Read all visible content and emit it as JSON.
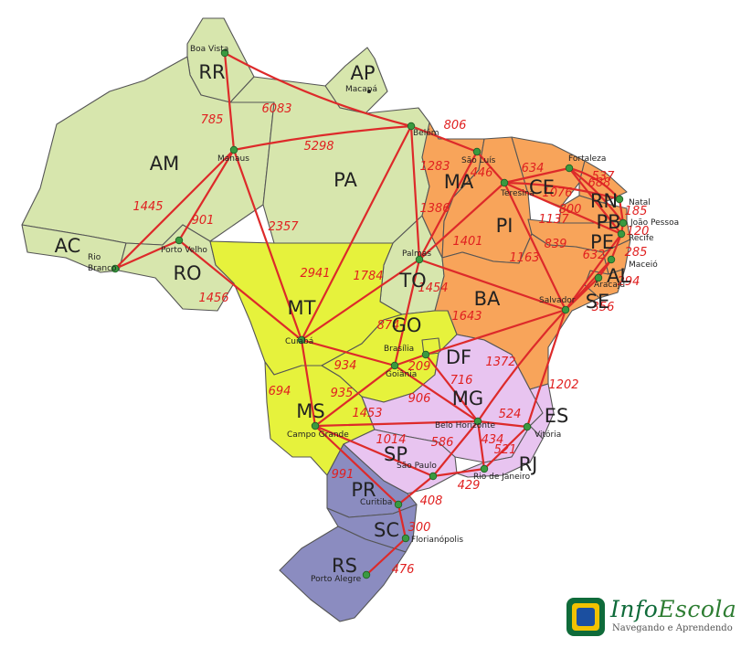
{
  "map": {
    "colors": {
      "north": "#d7e6ad",
      "northeast": "#f8a45a",
      "center_west": "#e6f23c",
      "southeast": "#e8c4f0",
      "south": "#8b8cc0",
      "route": "#dd2a2a",
      "city_marker": "#3a9a40",
      "border": "#555555"
    },
    "states": [
      {
        "id": "RR",
        "label": "RR",
        "region": "north"
      },
      {
        "id": "AP",
        "label": "AP",
        "region": "north"
      },
      {
        "id": "AM",
        "label": "AM",
        "region": "north"
      },
      {
        "id": "PA",
        "label": "PA",
        "region": "north"
      },
      {
        "id": "AC",
        "label": "AC",
        "region": "north"
      },
      {
        "id": "RO",
        "label": "RO",
        "region": "north"
      },
      {
        "id": "TO",
        "label": "TO",
        "region": "north"
      },
      {
        "id": "MA",
        "label": "MA",
        "region": "northeast"
      },
      {
        "id": "PI",
        "label": "PI",
        "region": "northeast"
      },
      {
        "id": "CE",
        "label": "CE",
        "region": "northeast"
      },
      {
        "id": "RN",
        "label": "RN",
        "region": "northeast"
      },
      {
        "id": "PB",
        "label": "PB",
        "region": "northeast"
      },
      {
        "id": "PE",
        "label": "PE",
        "region": "northeast"
      },
      {
        "id": "AL",
        "label": "AL",
        "region": "northeast"
      },
      {
        "id": "SE",
        "label": "SE",
        "region": "northeast"
      },
      {
        "id": "BA",
        "label": "BA",
        "region": "northeast"
      },
      {
        "id": "MT",
        "label": "MT",
        "region": "center_west"
      },
      {
        "id": "GO",
        "label": "GO",
        "region": "center_west"
      },
      {
        "id": "DF",
        "label": "DF",
        "region": "center_west"
      },
      {
        "id": "MS",
        "label": "MS",
        "region": "center_west"
      },
      {
        "id": "MG",
        "label": "MG",
        "region": "southeast"
      },
      {
        "id": "ES",
        "label": "ES",
        "region": "southeast"
      },
      {
        "id": "SP",
        "label": "SP",
        "region": "southeast"
      },
      {
        "id": "RJ",
        "label": "RJ",
        "region": "southeast"
      },
      {
        "id": "PR",
        "label": "PR",
        "region": "south"
      },
      {
        "id": "SC",
        "label": "SC",
        "region": "south"
      },
      {
        "id": "RS",
        "label": "RS",
        "region": "south"
      }
    ],
    "cities": [
      {
        "id": "boavista",
        "name": "Boa Vista"
      },
      {
        "id": "macapa",
        "name": "Macapá"
      },
      {
        "id": "manaus",
        "name": "Manaus"
      },
      {
        "id": "belem",
        "name": "Belém"
      },
      {
        "id": "saoluis",
        "name": "São Luís"
      },
      {
        "id": "fortaleza",
        "name": "Fortaleza"
      },
      {
        "id": "teresina",
        "name": "Teresina"
      },
      {
        "id": "natal",
        "name": "Natal"
      },
      {
        "id": "joaopessoa",
        "name": "João Pessoa"
      },
      {
        "id": "recife",
        "name": "Recife"
      },
      {
        "id": "maceio",
        "name": "Maceió"
      },
      {
        "id": "aracaju",
        "name": "Aracajú"
      },
      {
        "id": "salvador",
        "name": "Salvador"
      },
      {
        "id": "riobranco",
        "name": "Rio Branco"
      },
      {
        "id": "portovelho",
        "name": "Porto Velho"
      },
      {
        "id": "palmas",
        "name": "Palmas"
      },
      {
        "id": "cuiaba",
        "name": "Cuiabá"
      },
      {
        "id": "brasilia",
        "name": "Brasília"
      },
      {
        "id": "goiania",
        "name": "Goiânia"
      },
      {
        "id": "campogrande",
        "name": "Campo Grande"
      },
      {
        "id": "belohorizonte",
        "name": "Belo Horizonte"
      },
      {
        "id": "vitoria",
        "name": "Vitória"
      },
      {
        "id": "saopaulo",
        "name": "São Paulo"
      },
      {
        "id": "riodejaneiro",
        "name": "Rio de Janeiro"
      },
      {
        "id": "curitiba",
        "name": "Curitiba"
      },
      {
        "id": "florianopolis",
        "name": "Florianópolis"
      },
      {
        "id": "portoalegre",
        "name": "Porto Alegre"
      }
    ],
    "routes": [
      {
        "from": "boavista",
        "to": "manaus",
        "km": "785"
      },
      {
        "from": "boavista",
        "to": "belem",
        "km": "6083"
      },
      {
        "from": "manaus",
        "to": "belem",
        "km": "5298"
      },
      {
        "from": "manaus",
        "to": "riobranco",
        "km": "1445"
      },
      {
        "from": "manaus",
        "to": "portovelho",
        "km": "901"
      },
      {
        "from": "manaus",
        "to": "cuiaba",
        "km": "2357"
      },
      {
        "from": "portovelho",
        "to": "riobranco",
        "km": ""
      },
      {
        "from": "portovelho",
        "to": "cuiaba",
        "km": "1456"
      },
      {
        "from": "belem",
        "to": "saoluis",
        "km": "806"
      },
      {
        "from": "belem",
        "to": "palmas",
        "km": "1283"
      },
      {
        "from": "belem",
        "to": "cuiaba",
        "km": "2941"
      },
      {
        "from": "saoluis",
        "to": "teresina",
        "km": "446"
      },
      {
        "from": "saoluis",
        "to": "palmas",
        "km": "1386"
      },
      {
        "from": "teresina",
        "to": "fortaleza",
        "km": "634"
      },
      {
        "from": "teresina",
        "to": "natal",
        "km": "1076"
      },
      {
        "from": "teresina",
        "to": "recife",
        "km": "1137"
      },
      {
        "from": "teresina",
        "to": "salvador",
        "km": "1163"
      },
      {
        "from": "teresina",
        "to": "palmas",
        "km": "1401"
      },
      {
        "from": "fortaleza",
        "to": "natal",
        "km": "537"
      },
      {
        "from": "fortaleza",
        "to": "recife",
        "km": "800"
      },
      {
        "from": "fortaleza",
        "to": "joaopessoa",
        "km": "688"
      },
      {
        "from": "natal",
        "to": "joaopessoa",
        "km": "185"
      },
      {
        "from": "joaopessoa",
        "to": "recife",
        "km": "120"
      },
      {
        "from": "recife",
        "to": "maceio",
        "km": "285"
      },
      {
        "from": "recife",
        "to": "salvador",
        "km": "839"
      },
      {
        "from": "maceio",
        "to": "aracaju",
        "km": "294"
      },
      {
        "from": "maceio",
        "to": "salvador",
        "km": "632"
      },
      {
        "from": "aracaju",
        "to": "salvador",
        "km": "356"
      },
      {
        "from": "palmas",
        "to": "cuiaba",
        "km": "1784"
      },
      {
        "from": "palmas",
        "to": "salvador",
        "km": "1454"
      },
      {
        "from": "palmas",
        "to": "goiania",
        "km": "874"
      },
      {
        "from": "cuiaba",
        "to": "goiania",
        "km": "934"
      },
      {
        "from": "cuiaba",
        "to": "campogrande",
        "km": "694"
      },
      {
        "from": "brasilia",
        "to": "salvador",
        "km": "1643"
      },
      {
        "from": "brasilia",
        "to": "goiania",
        "km": "209"
      },
      {
        "from": "brasilia",
        "to": "belohorizonte",
        "km": "716"
      },
      {
        "from": "goiania",
        "to": "campogrande",
        "km": "935"
      },
      {
        "from": "goiania",
        "to": "belohorizonte",
        "km": "906"
      },
      {
        "from": "salvador",
        "to": "belohorizonte",
        "km": "1372"
      },
      {
        "from": "salvador",
        "to": "vitoria",
        "km": "1202"
      },
      {
        "from": "belohorizonte",
        "to": "vitoria",
        "km": "524"
      },
      {
        "from": "belohorizonte",
        "to": "riodejaneiro",
        "km": "434"
      },
      {
        "from": "belohorizonte",
        "to": "saopaulo",
        "km": "586"
      },
      {
        "from": "campogrande",
        "to": "belohorizonte",
        "km": "1453"
      },
      {
        "from": "campogrande",
        "to": "saopaulo",
        "km": "1014"
      },
      {
        "from": "campogrande",
        "to": "curitiba",
        "km": "991"
      },
      {
        "from": "vitoria",
        "to": "riodejaneiro",
        "km": "521"
      },
      {
        "from": "saopaulo",
        "to": "riodejaneiro",
        "km": "429"
      },
      {
        "from": "saopaulo",
        "to": "curitiba",
        "km": "408"
      },
      {
        "from": "curitiba",
        "to": "florianopolis",
        "km": "300"
      },
      {
        "from": "florianopolis",
        "to": "portoalegre",
        "km": "476"
      }
    ]
  },
  "logo": {
    "name_part1": "Info",
    "name_part2": "Escola",
    "tagline": "Navegando e Aprendendo"
  }
}
